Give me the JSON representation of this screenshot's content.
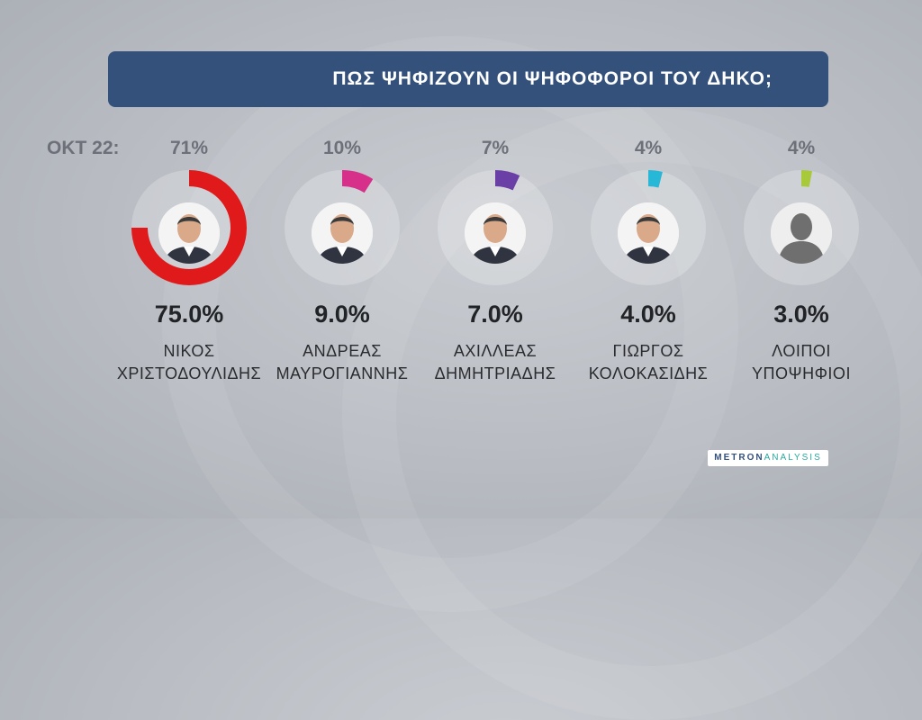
{
  "title": "ΠΩΣ ΨΗΦΙΖΟΥΝ ΟΙ ΨΗΦΟΦΟΡΟΙ ΤΟΥ ΔΗΚΟ;",
  "prev_label": "ΟΚΤ 22:",
  "logo": {
    "part1": "METRON",
    "part2": "ANALYSIS"
  },
  "candidates": [
    {
      "line1": "ΝΙΚΟΣ",
      "line2": "ΧΡΙΣΤΟΔΟΥΛΙΔΗΣ",
      "prev": "71%",
      "result": "75.0%",
      "color": "#e0191b",
      "photo": "person-photo"
    },
    {
      "line1": "ΑΝΔΡΕΑΣ",
      "line2": "ΜΑΥΡΟΓΙΑΝΝΗΣ",
      "prev": "10%",
      "result": "9.0%",
      "color": "#d6308b",
      "photo": "person-photo"
    },
    {
      "line1": "ΑΧΙΛΛΕΑΣ",
      "line2": "ΔΗΜΗΤΡΙΑΔΗΣ",
      "prev": "7%",
      "result": "7.0%",
      "color": "#6a3fa6",
      "photo": "person-photo"
    },
    {
      "line1": "ΓΙΩΡΓΟΣ",
      "line2": "ΚΟΛΟΚΑΣΙΔΗΣ",
      "prev": "4%",
      "result": "4.0%",
      "color": "#27b8d8",
      "photo": "person-photo"
    },
    {
      "line1": "ΛΟΙΠΟΙ",
      "line2": "ΥΠΟΨΗΦΙΟΙ",
      "prev": "4%",
      "result": "3.0%",
      "color": "#a8c93a",
      "photo": "silhouette-icon"
    }
  ],
  "chart_data": {
    "type": "pie",
    "title": "ΠΩΣ ΨΗΦΙΖΟΥΝ ΟΙ ΨΗΦΟΦΟΡΟΙ ΤΟΥ ΔΗΚΟ;",
    "categories": [
      "ΝΙΚΟΣ ΧΡΙΣΤΟΔΟΥΛΙΔΗΣ",
      "ΑΝΔΡΕΑΣ ΜΑΥΡΟΓΙΑΝΝΗΣ",
      "ΑΧΙΛΛΕΑΣ ΔΗΜΗΤΡΙΑΔΗΣ",
      "ΓΙΩΡΓΟΣ ΚΟΛΟΚΑΣΙΔΗΣ",
      "ΛΟΙΠΟΙ ΥΠΟΨΗΦΙΟΙ"
    ],
    "values": [
      75.0,
      9.0,
      7.0,
      4.0,
      3.0
    ],
    "previous": {
      "label": "ΟΚΤ 22:",
      "values": [
        71,
        10,
        7,
        4,
        4
      ]
    }
  }
}
